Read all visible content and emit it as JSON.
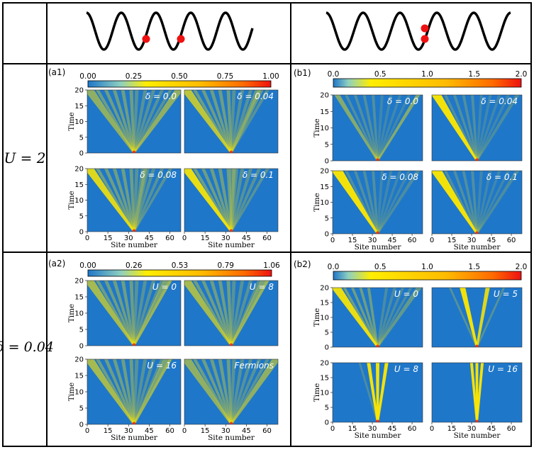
{
  "header": {
    "row_labels": [
      "U = 2",
      "δ = 0.04"
    ]
  },
  "panels": [
    {
      "id": "a1",
      "tag": "(a1)",
      "colorbar": {
        "ticks": [
          "0.00",
          "0.25",
          "0.50",
          "0.75",
          "1.00"
        ]
      },
      "subplots": [
        {
          "label": "δ = 0.0"
        },
        {
          "label": "δ = 0.04"
        },
        {
          "label": "δ = 0.08"
        },
        {
          "label": "δ = 0.1"
        }
      ]
    },
    {
      "id": "b1",
      "tag": "(b1)",
      "colorbar": {
        "ticks": [
          "0.0",
          "0.5",
          "1.0",
          "1.5",
          "2.0"
        ]
      },
      "subplots": [
        {
          "label": "δ = 0.0"
        },
        {
          "label": "δ = 0.04"
        },
        {
          "label": "δ = 0.08"
        },
        {
          "label": "δ = 0.1"
        }
      ]
    },
    {
      "id": "a2",
      "tag": "(a2)",
      "colorbar": {
        "ticks": [
          "0.00",
          "0.26",
          "0.53",
          "0.79",
          "1.06"
        ]
      },
      "subplots": [
        {
          "label": "U = 0"
        },
        {
          "label": "U = 8"
        },
        {
          "label": "U = 16"
        },
        {
          "label": "Fermions"
        }
      ]
    },
    {
      "id": "b2",
      "tag": "(b2)",
      "colorbar": {
        "ticks": [
          "0.0",
          "0.5",
          "1.0",
          "1.5",
          "2.0"
        ]
      },
      "subplots": [
        {
          "label": "U = 0"
        },
        {
          "label": "U = 5"
        },
        {
          "label": "U = 8"
        },
        {
          "label": "U = 16"
        }
      ]
    }
  ],
  "axes": {
    "xlabel": "Site number",
    "ylabel": "Time",
    "xticks": [
      "0",
      "15",
      "30",
      "45",
      "60"
    ],
    "yticks": [
      "0",
      "5",
      "10",
      "15",
      "20"
    ]
  },
  "colors": {
    "background": "#1f77c9",
    "beam": "#ffe800",
    "particle": "#ee1111",
    "wave": "#000000"
  }
}
